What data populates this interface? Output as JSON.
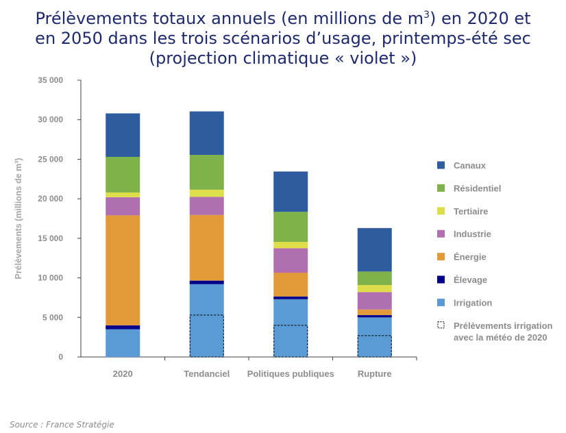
{
  "chart_title": {
    "line1": "Prélèvements totaux annuels (en millions de m",
    "sup": "3",
    "line1_end": ") en 2020 et",
    "line2": "en 2050 dans les trois scénarios d’usage, printemps-été sec",
    "line3": "(projection climatique « violet »)"
  },
  "source": "Source : France Stratégie",
  "chart_data": {
    "type": "bar",
    "stacked": true,
    "title": "Prélèvements totaux annuels (en millions de m3) en 2020 et en 2050 dans les trois scénarios d’usage, printemps-été sec (projection climatique « violet »)",
    "ylabel": "Prélèvements (millions de m³)",
    "xlabel": "",
    "ylim": [
      0,
      35000
    ],
    "yticks": [
      0,
      5000,
      10000,
      15000,
      20000,
      25000,
      30000,
      35000
    ],
    "ytick_labels": [
      "0",
      "5 000",
      "10 000",
      "15 000",
      "20 000",
      "25 000",
      "30 000",
      "35 000"
    ],
    "categories": [
      "2020",
      "Tendanciel",
      "Politiques publiques",
      "Rupture"
    ],
    "series": [
      {
        "name": "Irrigation",
        "color": "#5b9bd5",
        "values": [
          3500,
          9200,
          7300,
          5000
        ]
      },
      {
        "name": "Élevage",
        "color": "#00008b",
        "values": [
          500,
          450,
          350,
          300
        ]
      },
      {
        "name": "Énergie",
        "color": "#e39a39",
        "values": [
          13900,
          8300,
          3000,
          700
        ]
      },
      {
        "name": "Industrie",
        "color": "#b070b0",
        "values": [
          2300,
          2300,
          3100,
          2200
        ]
      },
      {
        "name": "Tertiaire",
        "color": "#dede4a",
        "values": [
          600,
          900,
          800,
          900
        ]
      },
      {
        "name": "Résidentiel",
        "color": "#7fb24a",
        "values": [
          4500,
          4400,
          3800,
          1700
        ]
      },
      {
        "name": "Canaux",
        "color": "#2e5c9e",
        "values": [
          5500,
          5500,
          5100,
          5500
        ]
      }
    ],
    "irrigation_2020_weather": {
      "name": "Prélèvements irrigation avec la météo de 2020",
      "values": [
        null,
        5300,
        4000,
        2700
      ]
    },
    "legend": {
      "position": "right",
      "entries": [
        {
          "label": "Canaux",
          "color": "#2e5c9e",
          "style": "solid"
        },
        {
          "label": "Résidentiel",
          "color": "#7fb24a",
          "style": "solid"
        },
        {
          "label": "Tertiaire",
          "color": "#dede4a",
          "style": "solid"
        },
        {
          "label": "Industrie",
          "color": "#b070b0",
          "style": "solid"
        },
        {
          "label": "Énergie",
          "color": "#e39a39",
          "style": "solid"
        },
        {
          "label": "Élevage",
          "color": "#00008b",
          "style": "solid"
        },
        {
          "label": "Irrigation",
          "color": "#5b9bd5",
          "style": "solid"
        },
        {
          "label": "Prélèvements irrigation",
          "label2": "avec la météo de 2020",
          "color": "#000000",
          "style": "dashed"
        }
      ]
    },
    "grid": false
  }
}
